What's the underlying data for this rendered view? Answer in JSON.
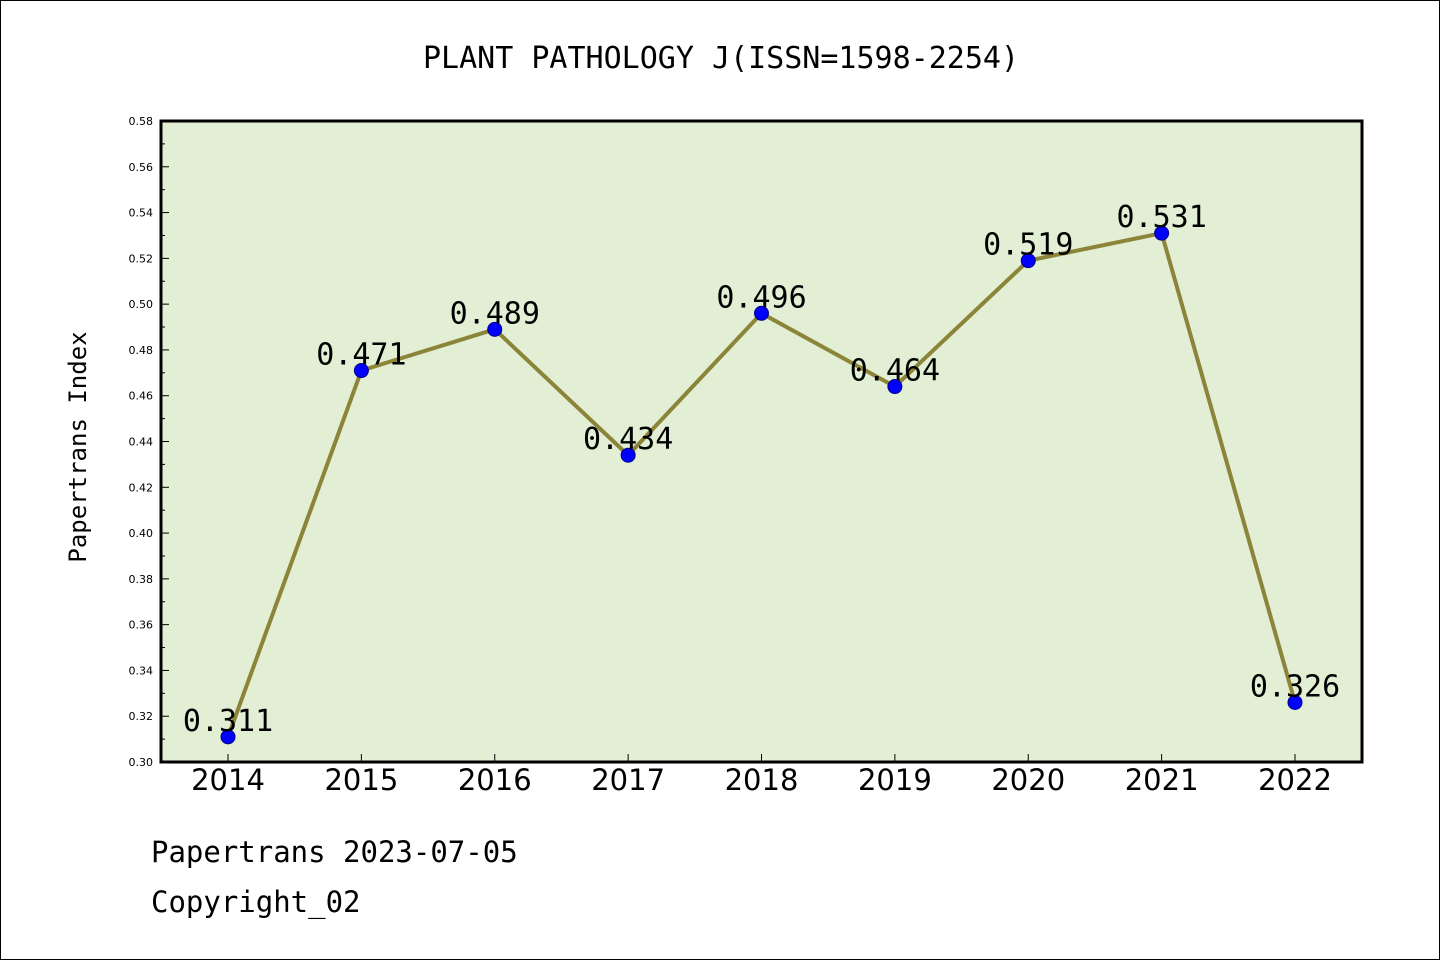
{
  "chart_data": {
    "type": "line",
    "title": "PLANT PATHOLOGY J(ISSN=1598-2254)",
    "xlabel": "",
    "ylabel": "Papertrans Index",
    "categories": [
      "2014",
      "2015",
      "2016",
      "2017",
      "2018",
      "2019",
      "2020",
      "2021",
      "2022"
    ],
    "series": [
      {
        "values": [
          0.311,
          0.471,
          0.489,
          0.434,
          0.496,
          0.464,
          0.519,
          0.531,
          0.326
        ],
        "labels": [
          "0.311",
          "0.471",
          "0.489",
          "0.434",
          "0.496",
          "0.464",
          "0.519",
          "0.531",
          "0.326"
        ]
      }
    ],
    "ylim": [
      0.3,
      0.58
    ],
    "yticks": [
      "0.30",
      "0.32",
      "0.34",
      "0.36",
      "0.38",
      "0.40",
      "0.42",
      "0.44",
      "0.46",
      "0.48",
      "0.50",
      "0.52",
      "0.54",
      "0.56",
      "0.58"
    ],
    "grid": false,
    "legend": "none",
    "colors": {
      "plot_background": "#e2efd4",
      "line": "#8b8439",
      "marker": "#0000ff",
      "axis": "#000000"
    }
  },
  "footer": {
    "date_line": "Papertrans 2023-07-05",
    "copyright": "Copyright_02"
  }
}
